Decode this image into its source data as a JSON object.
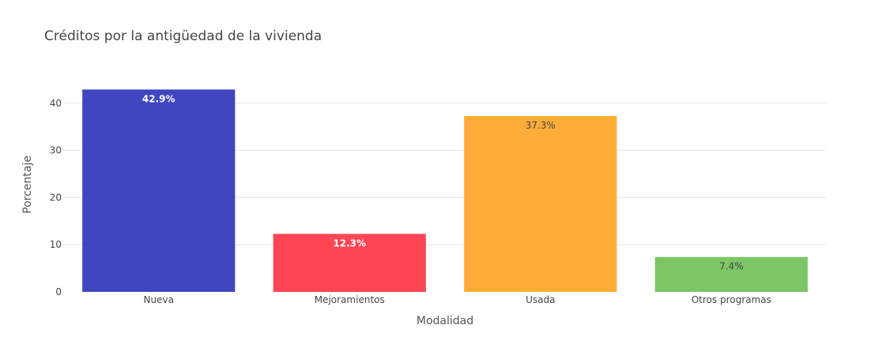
{
  "chart_data": {
    "type": "bar",
    "title": "Créditos por la antigüedad de la vivienda",
    "xlabel": "Modalidad",
    "ylabel": "Porcentaje",
    "categories": [
      "Nueva",
      "Mejoramientos",
      "Usada",
      "Otros programas"
    ],
    "values": [
      42.9,
      12.3,
      37.3,
      7.4
    ],
    "data_labels": [
      "42.9%",
      "12.3%",
      "37.3%",
      "7.4%"
    ],
    "colors": [
      "#3f46bf",
      "#ff4553",
      "#ffad38",
      "#7cc665"
    ],
    "label_colors": [
      "#ffffff",
      "#ffffff",
      "#444444",
      "#444444"
    ],
    "label_bold": [
      true,
      true,
      false,
      false
    ],
    "yticks": [
      0,
      10,
      20,
      30,
      40
    ],
    "ylim": [
      0,
      45.2
    ],
    "grid": true,
    "legend": false
  }
}
